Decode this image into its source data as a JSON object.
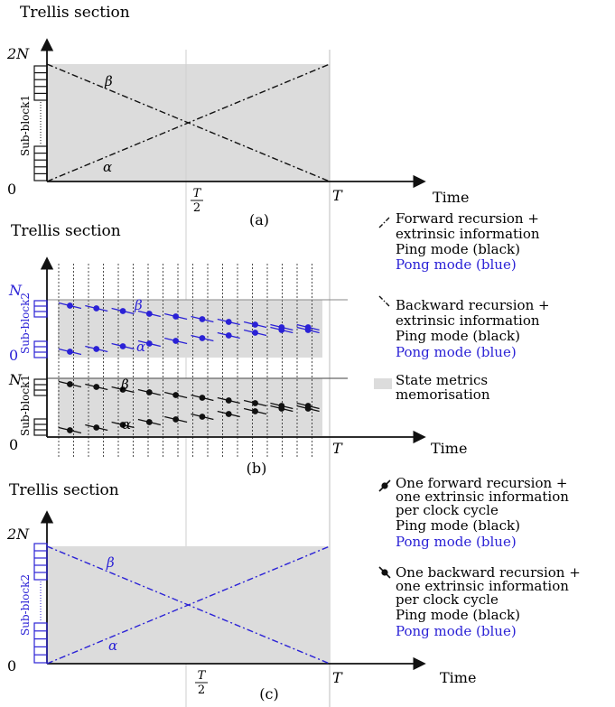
{
  "colors": {
    "black": "#111111",
    "blue": "#2b22d6",
    "shade": "#dcdcdc"
  },
  "panel_a": {
    "heading": "Trellis section",
    "y_top_label": "2N",
    "y_zero_label": "0",
    "axis_label": "Sub-block1",
    "x_mid_label_num": "T",
    "x_mid_label_den": "2",
    "x_end_label": "T",
    "x_axis_label": "Time",
    "caption": "(a)",
    "beta_label": "β",
    "alpha_label": "α"
  },
  "panel_b": {
    "heading": "Trellis section",
    "n_label": "N",
    "zero_mid_label": "0",
    "n_lower_label": "N",
    "zero_label": "0",
    "axis_label_upper": "Sub-block2",
    "axis_label_lower": "Sub-block1",
    "x_end_label": "T",
    "x_axis_label": "Time",
    "caption": "(b)",
    "beta_label": "β",
    "alpha_label": "α",
    "beta_label_lower": "β",
    "alpha_label_lower": "α"
  },
  "panel_c": {
    "heading": "Trellis section",
    "y_top_label": "2N",
    "y_zero_label": "0",
    "axis_label": "Sub-block2",
    "x_mid_label_num": "T",
    "x_mid_label_den": "2",
    "x_end_label": "T",
    "x_axis_label": "Time",
    "caption": "(c)",
    "beta_label": "β",
    "alpha_label": "α"
  },
  "legend": {
    "forward": {
      "line1": "Forward recursion +",
      "line2": "extrinsic information",
      "ping": "Ping mode (black)",
      "pong": "Pong mode (blue)"
    },
    "backward": {
      "line1": "Backward recursion +",
      "line2": "extrinsic information",
      "ping": "Ping mode (black)",
      "pong": "Pong mode (blue)"
    },
    "memo": {
      "line1": "State metrics",
      "line2": "memorisation"
    },
    "one_forward": {
      "line1": "One forward recursion +",
      "line2": "one extrinsic information",
      "line3": "per clock cycle",
      "ping": "Ping mode (black)",
      "pong": "Pong mode (blue)"
    },
    "one_backward": {
      "line1": "One backward recursion +",
      "line2": "one extrinsic information",
      "line3": "per clock cycle",
      "ping": "Ping mode (black)",
      "pong": "Pong mode (blue)"
    }
  }
}
